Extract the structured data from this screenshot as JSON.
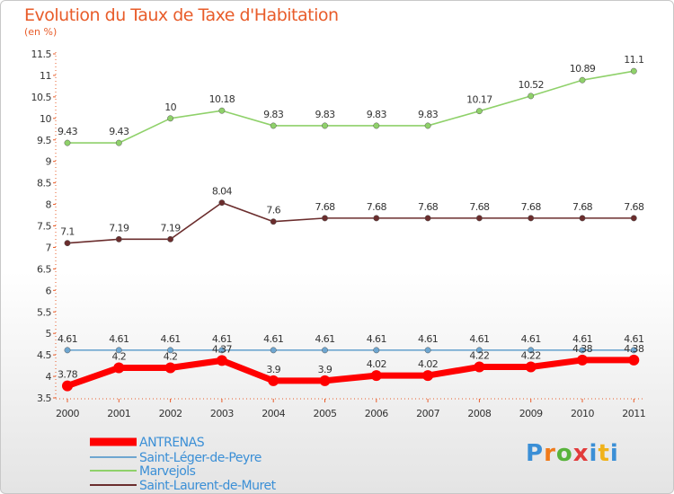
{
  "chart_data": {
    "type": "line",
    "title": "Evolution du Taux de Taxe d'Habitation",
    "subtitle": "(en %)",
    "xlabel": "",
    "ylabel": "",
    "ylim": [
      3.5,
      11.5
    ],
    "y_ticks": [
      "3.5",
      "4",
      "4.5",
      "5",
      "5.5",
      "6",
      "6.5",
      "7",
      "7.5",
      "8",
      "8.5",
      "9",
      "9.5",
      "10",
      "10.5",
      "11",
      "11.5"
    ],
    "grid": false,
    "legend_position": "bottom-left",
    "categories": [
      "2000",
      "2001",
      "2002",
      "2003",
      "2004",
      "2005",
      "2006",
      "2007",
      "2008",
      "2009",
      "2010",
      "2011"
    ],
    "series": [
      {
        "name": "ANTRENAS",
        "color": "#ff0000",
        "values": [
          3.78,
          4.2,
          4.2,
          4.37,
          3.9,
          3.9,
          4.02,
          4.02,
          4.22,
          4.22,
          4.38,
          4.38
        ],
        "labels": [
          "3.78",
          "4.2",
          "4.2",
          "4.37",
          "3.9",
          "3.9",
          "4.02",
          "4.02",
          "4.22",
          "4.22",
          "4.38",
          "4.38"
        ]
      },
      {
        "name": "Saint-Léger-de-Peyre",
        "color": "#6ea6d0",
        "values": [
          4.61,
          4.61,
          4.61,
          4.61,
          4.61,
          4.61,
          4.61,
          4.61,
          4.61,
          4.61,
          4.61,
          4.61
        ],
        "labels": [
          "4.61",
          "4.61",
          "4.61",
          "4.61",
          "4.61",
          "4.61",
          "4.61",
          "4.61",
          "4.61",
          "4.61",
          "4.61",
          "4.61"
        ]
      },
      {
        "name": "Marvejols",
        "color": "#8fd16a",
        "values": [
          9.43,
          9.43,
          10,
          10.18,
          9.83,
          9.83,
          9.83,
          9.83,
          10.17,
          10.52,
          10.89,
          11.1
        ],
        "labels": [
          "9.43",
          "9.43",
          "10",
          "10.18",
          "9.83",
          "9.83",
          "9.83",
          "9.83",
          "10.17",
          "10.52",
          "10.89",
          "11.1"
        ]
      },
      {
        "name": "Saint-Laurent-de-Muret",
        "color": "#6b2d2d",
        "values": [
          7.1,
          7.19,
          7.19,
          8.04,
          7.6,
          7.68,
          7.68,
          7.68,
          7.68,
          7.68,
          7.68,
          7.68
        ],
        "labels": [
          "7.1",
          "7.19",
          "7.19",
          "8.04",
          "7.6",
          "7.68",
          "7.68",
          "7.68",
          "7.68",
          "7.68",
          "7.68",
          "7.68"
        ]
      }
    ]
  },
  "logo": {
    "text": "Proxiti"
  },
  "colors": {
    "title": "#e85c2a",
    "axis": "#e85c2a",
    "legend_text": "#3b8fd6"
  }
}
